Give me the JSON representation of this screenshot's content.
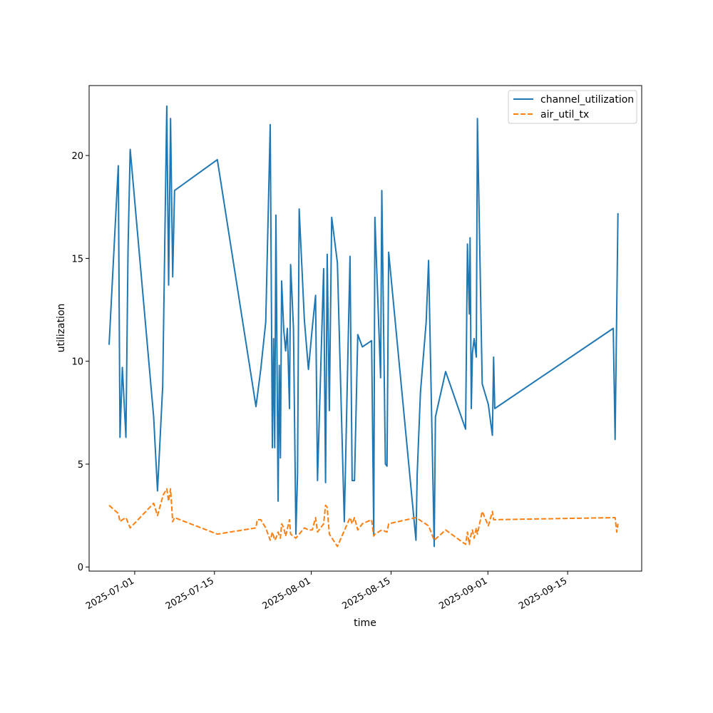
{
  "chart_data": {
    "type": "line",
    "title": "",
    "xlabel": "time",
    "ylabel": "utilization",
    "xlim": [
      "2025-06-23",
      "2025-09-28"
    ],
    "ylim": [
      -0.2,
      23.4
    ],
    "x_ticks": [
      "2025-07-01",
      "2025-07-15",
      "2025-08-01",
      "2025-08-15",
      "2025-09-01",
      "2025-09-15"
    ],
    "y_ticks": [
      0,
      5,
      10,
      15,
      20
    ],
    "grid": false,
    "legend": "top-right",
    "series": [
      {
        "name": "channel_utilization",
        "color": "#1f77b4",
        "dash": "solid",
        "points": [
          [
            "2025-06-26 12:00",
            10.8
          ],
          [
            "2025-06-28 03:00",
            19.5
          ],
          [
            "2025-06-28 10:00",
            6.3
          ],
          [
            "2025-06-28 20:00",
            9.7
          ],
          [
            "2025-06-29 11:00",
            6.3
          ],
          [
            "2025-06-29 20:00",
            15.5
          ],
          [
            "2025-06-30 05:00",
            20.3
          ],
          [
            "2025-07-04 08:00",
            7.3
          ],
          [
            "2025-07-05 00:00",
            3.7
          ],
          [
            "2025-07-05 22:00",
            8.8
          ],
          [
            "2025-07-06 15:00",
            22.4
          ],
          [
            "2025-07-06 23:00",
            13.7
          ],
          [
            "2025-07-07 07:00",
            21.8
          ],
          [
            "2025-07-07 16:00",
            14.1
          ],
          [
            "2025-07-08 00:00",
            18.3
          ],
          [
            "2025-07-15 12:00",
            19.8
          ],
          [
            "2025-07-22 07:00",
            7.8
          ],
          [
            "2025-07-23 03:00",
            9.6
          ],
          [
            "2025-07-24 00:00",
            11.9
          ],
          [
            "2025-07-24 19:00",
            21.5
          ],
          [
            "2025-07-25 04:00",
            5.8
          ],
          [
            "2025-07-25 09:00",
            11.1
          ],
          [
            "2025-07-25 14:00",
            5.8
          ],
          [
            "2025-07-25 19:00",
            17.1
          ],
          [
            "2025-07-26 04:00",
            3.2
          ],
          [
            "2025-07-26 09:00",
            9.8
          ],
          [
            "2025-07-26 14:00",
            5.3
          ],
          [
            "2025-07-26 19:00",
            13.9
          ],
          [
            "2025-07-27 04:00",
            11.5
          ],
          [
            "2025-07-27 12:00",
            10.5
          ],
          [
            "2025-07-27 19:00",
            11.6
          ],
          [
            "2025-07-28 04:00",
            7.7
          ],
          [
            "2025-07-28 09:00",
            14.7
          ],
          [
            "2025-07-28 21:00",
            11.6
          ],
          [
            "2025-07-29 07:00",
            1.6
          ],
          [
            "2025-07-29 14:00",
            4.5
          ],
          [
            "2025-07-29 21:00",
            17.4
          ],
          [
            "2025-07-30 19:00",
            12.0
          ],
          [
            "2025-07-31 12:00",
            9.6
          ],
          [
            "2025-08-01 04:00",
            11.6
          ],
          [
            "2025-08-01 18:00",
            13.2
          ],
          [
            "2025-08-02 02:00",
            4.2
          ],
          [
            "2025-08-03 04:00",
            14.5
          ],
          [
            "2025-08-03 12:00",
            4.1
          ],
          [
            "2025-08-03 19:00",
            15.2
          ],
          [
            "2025-08-04 04:00",
            7.6
          ],
          [
            "2025-08-04 14:00",
            17.0
          ],
          [
            "2025-08-05 14:00",
            14.8
          ],
          [
            "2025-08-06 19:00",
            2.2
          ],
          [
            "2025-08-07 19:00",
            15.1
          ],
          [
            "2025-08-08 04:00",
            4.2
          ],
          [
            "2025-08-08 14:00",
            4.2
          ],
          [
            "2025-08-09 04:00",
            11.3
          ],
          [
            "2025-08-09 23:00",
            10.7
          ],
          [
            "2025-08-11 14:00",
            11.0
          ],
          [
            "2025-08-11 23:00",
            1.6
          ],
          [
            "2025-08-12 04:00",
            17.0
          ],
          [
            "2025-08-13 04:00",
            9.2
          ],
          [
            "2025-08-13 09:00",
            18.3
          ],
          [
            "2025-08-14 00:00",
            5.0
          ],
          [
            "2025-08-14 07:00",
            4.9
          ],
          [
            "2025-08-14 14:00",
            15.3
          ],
          [
            "2025-08-19 09:00",
            1.3
          ],
          [
            "2025-08-19 14:00",
            4.5
          ],
          [
            "2025-08-20 04:00",
            8.5
          ],
          [
            "2025-08-21 04:00",
            11.9
          ],
          [
            "2025-08-21 14:00",
            14.9
          ],
          [
            "2025-08-22 14:00",
            1.0
          ],
          [
            "2025-08-22 19:00",
            7.3
          ],
          [
            "2025-08-24 14:00",
            9.5
          ],
          [
            "2025-08-28 02:00",
            6.7
          ],
          [
            "2025-08-28 10:00",
            15.7
          ],
          [
            "2025-08-28 18:00",
            12.3
          ],
          [
            "2025-08-28 21:00",
            16.0
          ],
          [
            "2025-08-29 02:00",
            7.7
          ],
          [
            "2025-08-29 07:00",
            10.4
          ],
          [
            "2025-08-29 14:00",
            11.1
          ],
          [
            "2025-08-29 23:00",
            10.2
          ],
          [
            "2025-08-30 04:00",
            21.8
          ],
          [
            "2025-08-31 00:00",
            8.9
          ],
          [
            "2025-09-01 02:00",
            7.9
          ],
          [
            "2025-09-01 19:00",
            6.4
          ],
          [
            "2025-09-02 00:00",
            10.2
          ],
          [
            "2025-09-02 05:00",
            7.7
          ],
          [
            "2025-09-23 00:00",
            11.6
          ],
          [
            "2025-09-23 08:00",
            6.2
          ],
          [
            "2025-09-23 20:00",
            17.2
          ]
        ]
      },
      {
        "name": "air_util_tx",
        "color": "#ff7f0e",
        "dash": "dashed",
        "points": [
          [
            "2025-06-26 12:00",
            3.0
          ],
          [
            "2025-06-28 03:00",
            2.6
          ],
          [
            "2025-06-28 10:00",
            2.2
          ],
          [
            "2025-06-28 20:00",
            2.3
          ],
          [
            "2025-06-29 11:00",
            2.4
          ],
          [
            "2025-06-30 05:00",
            1.9
          ],
          [
            "2025-07-04 08:00",
            3.1
          ],
          [
            "2025-07-05 00:00",
            2.5
          ],
          [
            "2025-07-06 00:00",
            3.5
          ],
          [
            "2025-07-06 15:00",
            3.8
          ],
          [
            "2025-07-06 23:00",
            3.2
          ],
          [
            "2025-07-07 07:00",
            3.8
          ],
          [
            "2025-07-07 16:00",
            2.2
          ],
          [
            "2025-07-08 00:00",
            2.4
          ],
          [
            "2025-07-15 12:00",
            1.6
          ],
          [
            "2025-07-22 07:00",
            1.9
          ],
          [
            "2025-07-22 12:00",
            2.3
          ],
          [
            "2025-07-23 03:00",
            2.3
          ],
          [
            "2025-07-24 00:00",
            1.9
          ],
          [
            "2025-07-24 19:00",
            1.3
          ],
          [
            "2025-07-25 04:00",
            1.7
          ],
          [
            "2025-07-25 14:00",
            1.3
          ],
          [
            "2025-07-25 19:00",
            1.4
          ],
          [
            "2025-07-26 04:00",
            1.7
          ],
          [
            "2025-07-26 14:00",
            1.4
          ],
          [
            "2025-07-26 19:00",
            2.1
          ],
          [
            "2025-07-27 04:00",
            1.9
          ],
          [
            "2025-07-27 12:00",
            1.5
          ],
          [
            "2025-07-28 04:00",
            2.3
          ],
          [
            "2025-07-28 09:00",
            1.6
          ],
          [
            "2025-07-29 07:00",
            1.4
          ],
          [
            "2025-07-29 21:00",
            1.6
          ],
          [
            "2025-07-30 19:00",
            1.9
          ],
          [
            "2025-07-31 12:00",
            1.8
          ],
          [
            "2025-08-01 04:00",
            1.8
          ],
          [
            "2025-08-01 18:00",
            2.4
          ],
          [
            "2025-08-02 02:00",
            1.7
          ],
          [
            "2025-08-03 04:00",
            2.1
          ],
          [
            "2025-08-03 12:00",
            3.0
          ],
          [
            "2025-08-03 19:00",
            2.9
          ],
          [
            "2025-08-04 04:00",
            1.6
          ],
          [
            "2025-08-05 14:00",
            1.0
          ],
          [
            "2025-08-07 19:00",
            2.4
          ],
          [
            "2025-08-08 04:00",
            2.1
          ],
          [
            "2025-08-08 14:00",
            2.4
          ],
          [
            "2025-08-09 04:00",
            1.8
          ],
          [
            "2025-08-09 23:00",
            2.1
          ],
          [
            "2025-08-11 14:00",
            2.3
          ],
          [
            "2025-08-11 23:00",
            1.5
          ],
          [
            "2025-08-12 04:00",
            1.6
          ],
          [
            "2025-08-13 09:00",
            1.8
          ],
          [
            "2025-08-14 07:00",
            1.7
          ],
          [
            "2025-08-14 14:00",
            2.1
          ],
          [
            "2025-08-19 09:00",
            2.4
          ],
          [
            "2025-08-21 14:00",
            2.0
          ],
          [
            "2025-08-22 14:00",
            1.3
          ],
          [
            "2025-08-24 14:00",
            1.8
          ],
          [
            "2025-08-28 02:00",
            1.1
          ],
          [
            "2025-08-28 10:00",
            1.7
          ],
          [
            "2025-08-28 18:00",
            1.1
          ],
          [
            "2025-08-28 21:00",
            1.4
          ],
          [
            "2025-08-29 07:00",
            1.8
          ],
          [
            "2025-08-29 14:00",
            1.4
          ],
          [
            "2025-08-29 23:00",
            1.9
          ],
          [
            "2025-08-30 04:00",
            1.6
          ],
          [
            "2025-08-31 00:00",
            2.7
          ],
          [
            "2025-09-01 02:00",
            2.0
          ],
          [
            "2025-09-01 19:00",
            2.7
          ],
          [
            "2025-09-02 00:00",
            2.3
          ],
          [
            "2025-09-23 00:00",
            2.4
          ],
          [
            "2025-09-23 08:00",
            2.4
          ],
          [
            "2025-09-23 15:00",
            1.7
          ],
          [
            "2025-09-23 20:00",
            2.1
          ]
        ]
      }
    ]
  }
}
